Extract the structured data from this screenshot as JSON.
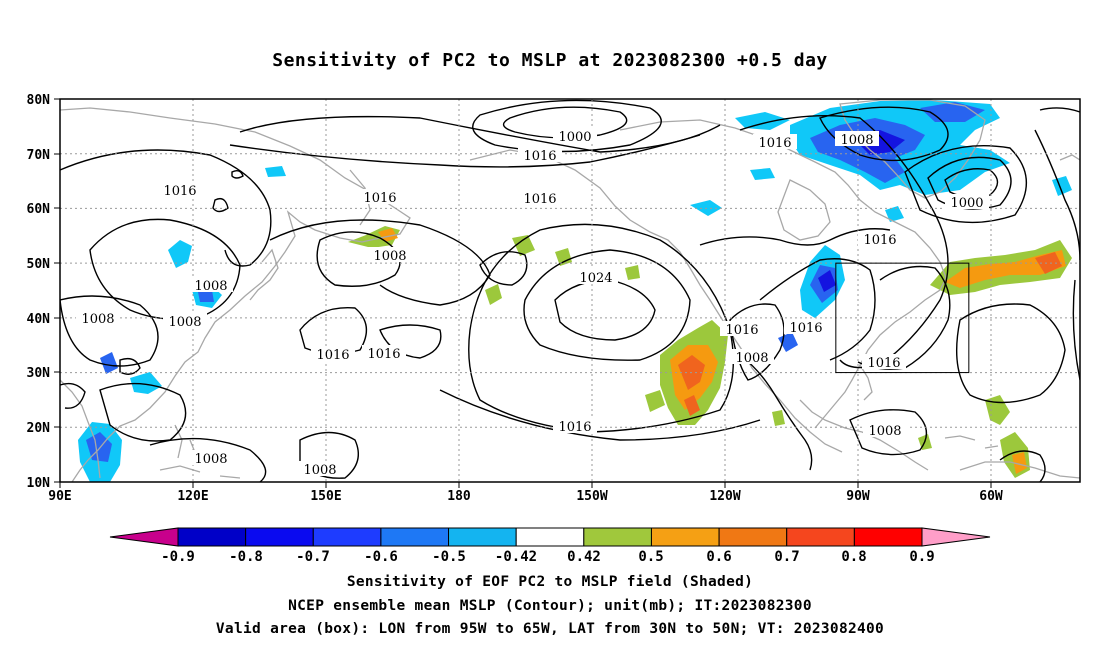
{
  "title": "Sensitivity of PC2 to MSLP at 2023082300 +0.5 day",
  "map": {
    "lat_labels": [
      "80N",
      "70N",
      "60N",
      "50N",
      "40N",
      "30N",
      "20N",
      "10N"
    ],
    "lon_labels": [
      "90E",
      "120E",
      "150E",
      "180",
      "150W",
      "120W",
      "90W",
      "60W"
    ],
    "contour_labels": [
      "1000",
      "1016",
      "1008",
      "1016",
      "1016",
      "1016",
      "1016",
      "1008",
      "1000",
      "1016",
      "1008",
      "1008",
      "1008",
      "1016",
      "1016",
      "1024",
      "1016",
      "1016",
      "1008",
      "1016",
      "1016",
      "1008",
      "1008",
      "1008"
    ],
    "valid_box": {
      "lon_west": -95,
      "lon_east": -65,
      "lat_south": 30,
      "lat_north": 50
    },
    "colors": {
      "coast": "#a8a8a8",
      "grid": "#9a9a9a",
      "blue_dark": "#1414e0",
      "blue": "#2864f0",
      "cyan": "#10c8f8",
      "green": "#9cc83c",
      "orange": "#f59a10",
      "orange_red": "#f0641e"
    }
  },
  "colorbar": {
    "labels": [
      "-0.9",
      "-0.8",
      "-0.7",
      "-0.6",
      "-0.5",
      "-0.42",
      "0.42",
      "0.5",
      "0.6",
      "0.7",
      "0.8",
      "0.9"
    ],
    "colors": [
      "#0000c8",
      "#0a0af0",
      "#1e3cff",
      "#1e78f5",
      "#14b4f0",
      "#ffffff",
      "#a0c83c",
      "#f5a014",
      "#f07814",
      "#f5461e",
      "#ff0000"
    ],
    "end_low": "#c8008c",
    "end_high": "#ff9ec8"
  },
  "footer": {
    "line1": "Sensitivity of EOF PC2 to MSLP field (Shaded)",
    "line2": "NCEP ensemble mean MSLP (Contour); unit(mb); IT:2023082300",
    "line3": "Valid area (box): LON from 95W to 65W, LAT from 30N to 50N; VT: 2023082400"
  }
}
